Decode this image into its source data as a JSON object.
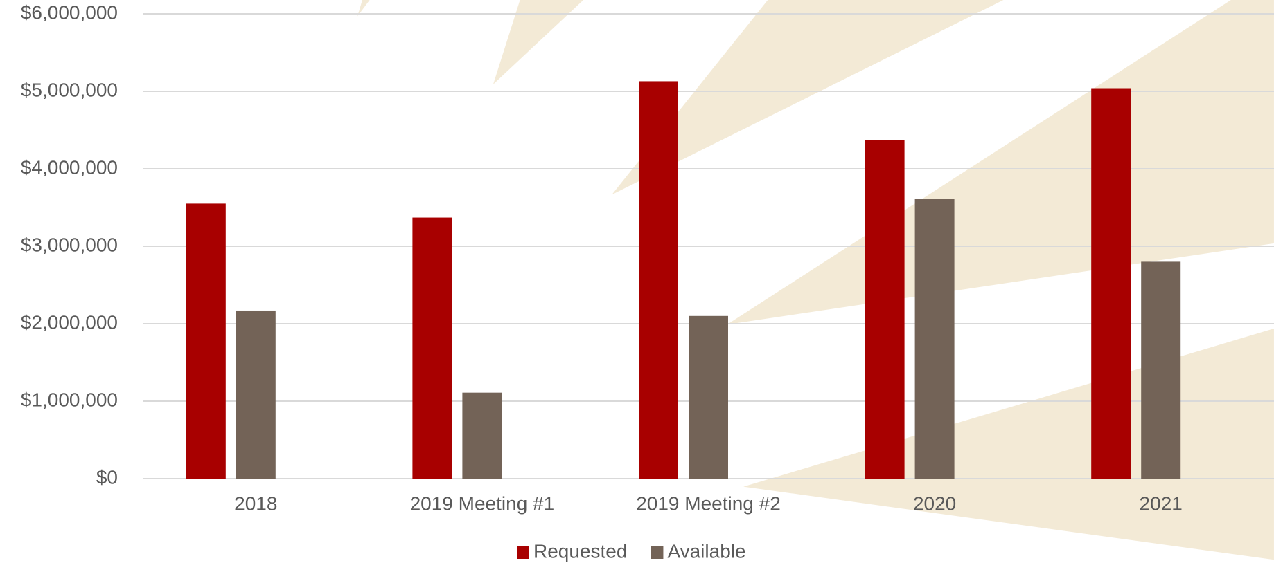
{
  "chart_data": {
    "type": "bar",
    "categories": [
      "2018",
      "2019 Meeting #1",
      "2019 Meeting #2",
      "2020",
      "2021"
    ],
    "series": [
      {
        "name": "Requested",
        "color": "#a80000",
        "values": [
          3550000,
          3370000,
          5130000,
          4370000,
          5040000
        ]
      },
      {
        "name": "Available",
        "color": "#736357",
        "values": [
          2170000,
          1110000,
          2100000,
          3610000,
          2800000
        ]
      }
    ],
    "ylim": [
      0,
      6000000
    ],
    "yticks": [
      {
        "value": 0,
        "label": "$0"
      },
      {
        "value": 1000000,
        "label": "$1,000,000"
      },
      {
        "value": 2000000,
        "label": "$2,000,000"
      },
      {
        "value": 3000000,
        "label": "$3,000,000"
      },
      {
        "value": 4000000,
        "label": "$4,000,000"
      },
      {
        "value": 5000000,
        "label": "$5,000,000"
      },
      {
        "value": 6000000,
        "label": "$6,000,000"
      }
    ],
    "grid": true,
    "legend": "bottom"
  }
}
